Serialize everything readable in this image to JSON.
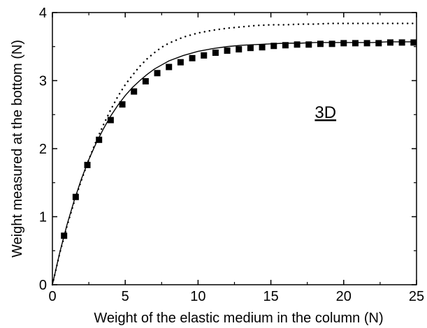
{
  "chart_data": {
    "type": "scatter",
    "title": "",
    "xlabel": "Weight of the elastic medium in the column (N)",
    "ylabel": "Weight measured at the bottom (N)",
    "xlim": [
      0,
      25
    ],
    "ylim": [
      0,
      4
    ],
    "xticks": [
      0,
      5,
      10,
      15,
      20,
      25
    ],
    "yticks": [
      0,
      1,
      2,
      3,
      4
    ],
    "grid": false,
    "legend": "none",
    "annotation": "3D",
    "series": [
      {
        "style": "square-markers",
        "color": "#000000",
        "x": [
          0.8,
          1.6,
          2.4,
          3.2,
          4.0,
          4.8,
          5.6,
          6.4,
          7.2,
          8.0,
          8.8,
          9.6,
          10.4,
          11.2,
          12.0,
          12.8,
          13.6,
          14.4,
          15.2,
          16.0,
          16.8,
          17.6,
          18.4,
          19.2,
          20.0,
          20.8,
          21.6,
          22.4,
          23.2,
          24.0,
          24.8
        ],
        "y": [
          0.72,
          1.29,
          1.76,
          2.13,
          2.42,
          2.65,
          2.84,
          2.99,
          3.11,
          3.2,
          3.27,
          3.33,
          3.37,
          3.41,
          3.44,
          3.46,
          3.48,
          3.49,
          3.51,
          3.52,
          3.53,
          3.53,
          3.54,
          3.54,
          3.55,
          3.55,
          3.55,
          3.55,
          3.56,
          3.56,
          3.56
        ]
      },
      {
        "style": "solid-line",
        "color": "#000000",
        "x": [
          0,
          0.5,
          1,
          1.5,
          2,
          2.5,
          3,
          3.5,
          4,
          4.5,
          5,
          5.5,
          6,
          6.5,
          7,
          7.5,
          8,
          9,
          10,
          11,
          12,
          13,
          14,
          15,
          16,
          17,
          18,
          19,
          20,
          21,
          22,
          23,
          24,
          25
        ],
        "y": [
          0,
          0.47,
          0.88,
          1.24,
          1.56,
          1.84,
          2.08,
          2.29,
          2.48,
          2.64,
          2.78,
          2.9,
          3.0,
          3.09,
          3.17,
          3.23,
          3.29,
          3.37,
          3.43,
          3.47,
          3.5,
          3.52,
          3.53,
          3.54,
          3.55,
          3.55,
          3.56,
          3.56,
          3.56,
          3.56,
          3.56,
          3.57,
          3.57,
          3.57
        ]
      },
      {
        "style": "dotted-line",
        "color": "#000000",
        "x": [
          0,
          0.5,
          1,
          1.5,
          2,
          2.5,
          3,
          3.5,
          4,
          4.5,
          5,
          5.5,
          6,
          6.5,
          7,
          7.5,
          8,
          9,
          10,
          11,
          12,
          13,
          14,
          15,
          16,
          17,
          18,
          19,
          20,
          21,
          22,
          23,
          24,
          25
        ],
        "y": [
          0,
          0.46,
          0.86,
          1.22,
          1.54,
          1.84,
          2.11,
          2.35,
          2.57,
          2.77,
          2.94,
          3.08,
          3.21,
          3.32,
          3.41,
          3.49,
          3.55,
          3.64,
          3.7,
          3.74,
          3.77,
          3.79,
          3.81,
          3.82,
          3.82,
          3.83,
          3.83,
          3.84,
          3.84,
          3.84,
          3.84,
          3.84,
          3.84,
          3.84
        ]
      }
    ]
  }
}
